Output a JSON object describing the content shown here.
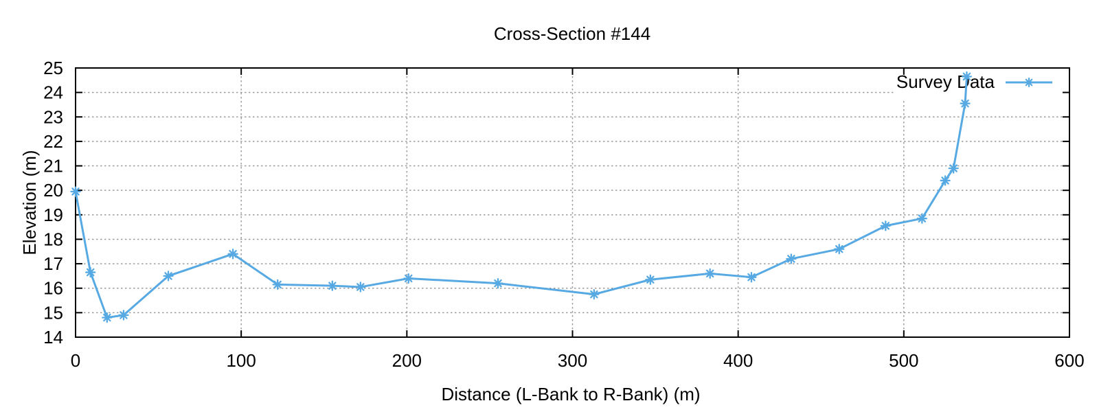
{
  "chart_data": {
    "type": "line",
    "title": "Cross-Section #144",
    "xlabel": "Distance (L-Bank to R-Bank) (m)",
    "ylabel": "Elevation (m)",
    "xlim": [
      0,
      600
    ],
    "ylim": [
      14,
      25
    ],
    "x_ticks": [
      0,
      100,
      200,
      300,
      400,
      500,
      600
    ],
    "y_ticks": [
      14,
      15,
      16,
      17,
      18,
      19,
      20,
      21,
      22,
      23,
      24,
      25
    ],
    "grid": true,
    "legend_position": "top-right-inside",
    "series": [
      {
        "name": "Survey Data",
        "marker": "asterisk",
        "points": [
          [
            0,
            19.95
          ],
          [
            9,
            16.65
          ],
          [
            19,
            14.8
          ],
          [
            29,
            14.9
          ],
          [
            56,
            16.5
          ],
          [
            95,
            17.4
          ],
          [
            122,
            16.15
          ],
          [
            155,
            16.1
          ],
          [
            172,
            16.05
          ],
          [
            201,
            16.4
          ],
          [
            255,
            16.2
          ],
          [
            313,
            15.75
          ],
          [
            347,
            16.35
          ],
          [
            383,
            16.6
          ],
          [
            408,
            16.45
          ],
          [
            432,
            17.2
          ],
          [
            461,
            17.6
          ],
          [
            489,
            18.55
          ],
          [
            511,
            18.85
          ],
          [
            525,
            20.4
          ],
          [
            530,
            20.9
          ],
          [
            537,
            23.55
          ],
          [
            538,
            24.65
          ]
        ]
      }
    ],
    "colors": {
      "series": "#56A9E2",
      "grid": "#9c9c9c",
      "axis": "#000000",
      "text": "#000000",
      "background": "#ffffff"
    }
  }
}
